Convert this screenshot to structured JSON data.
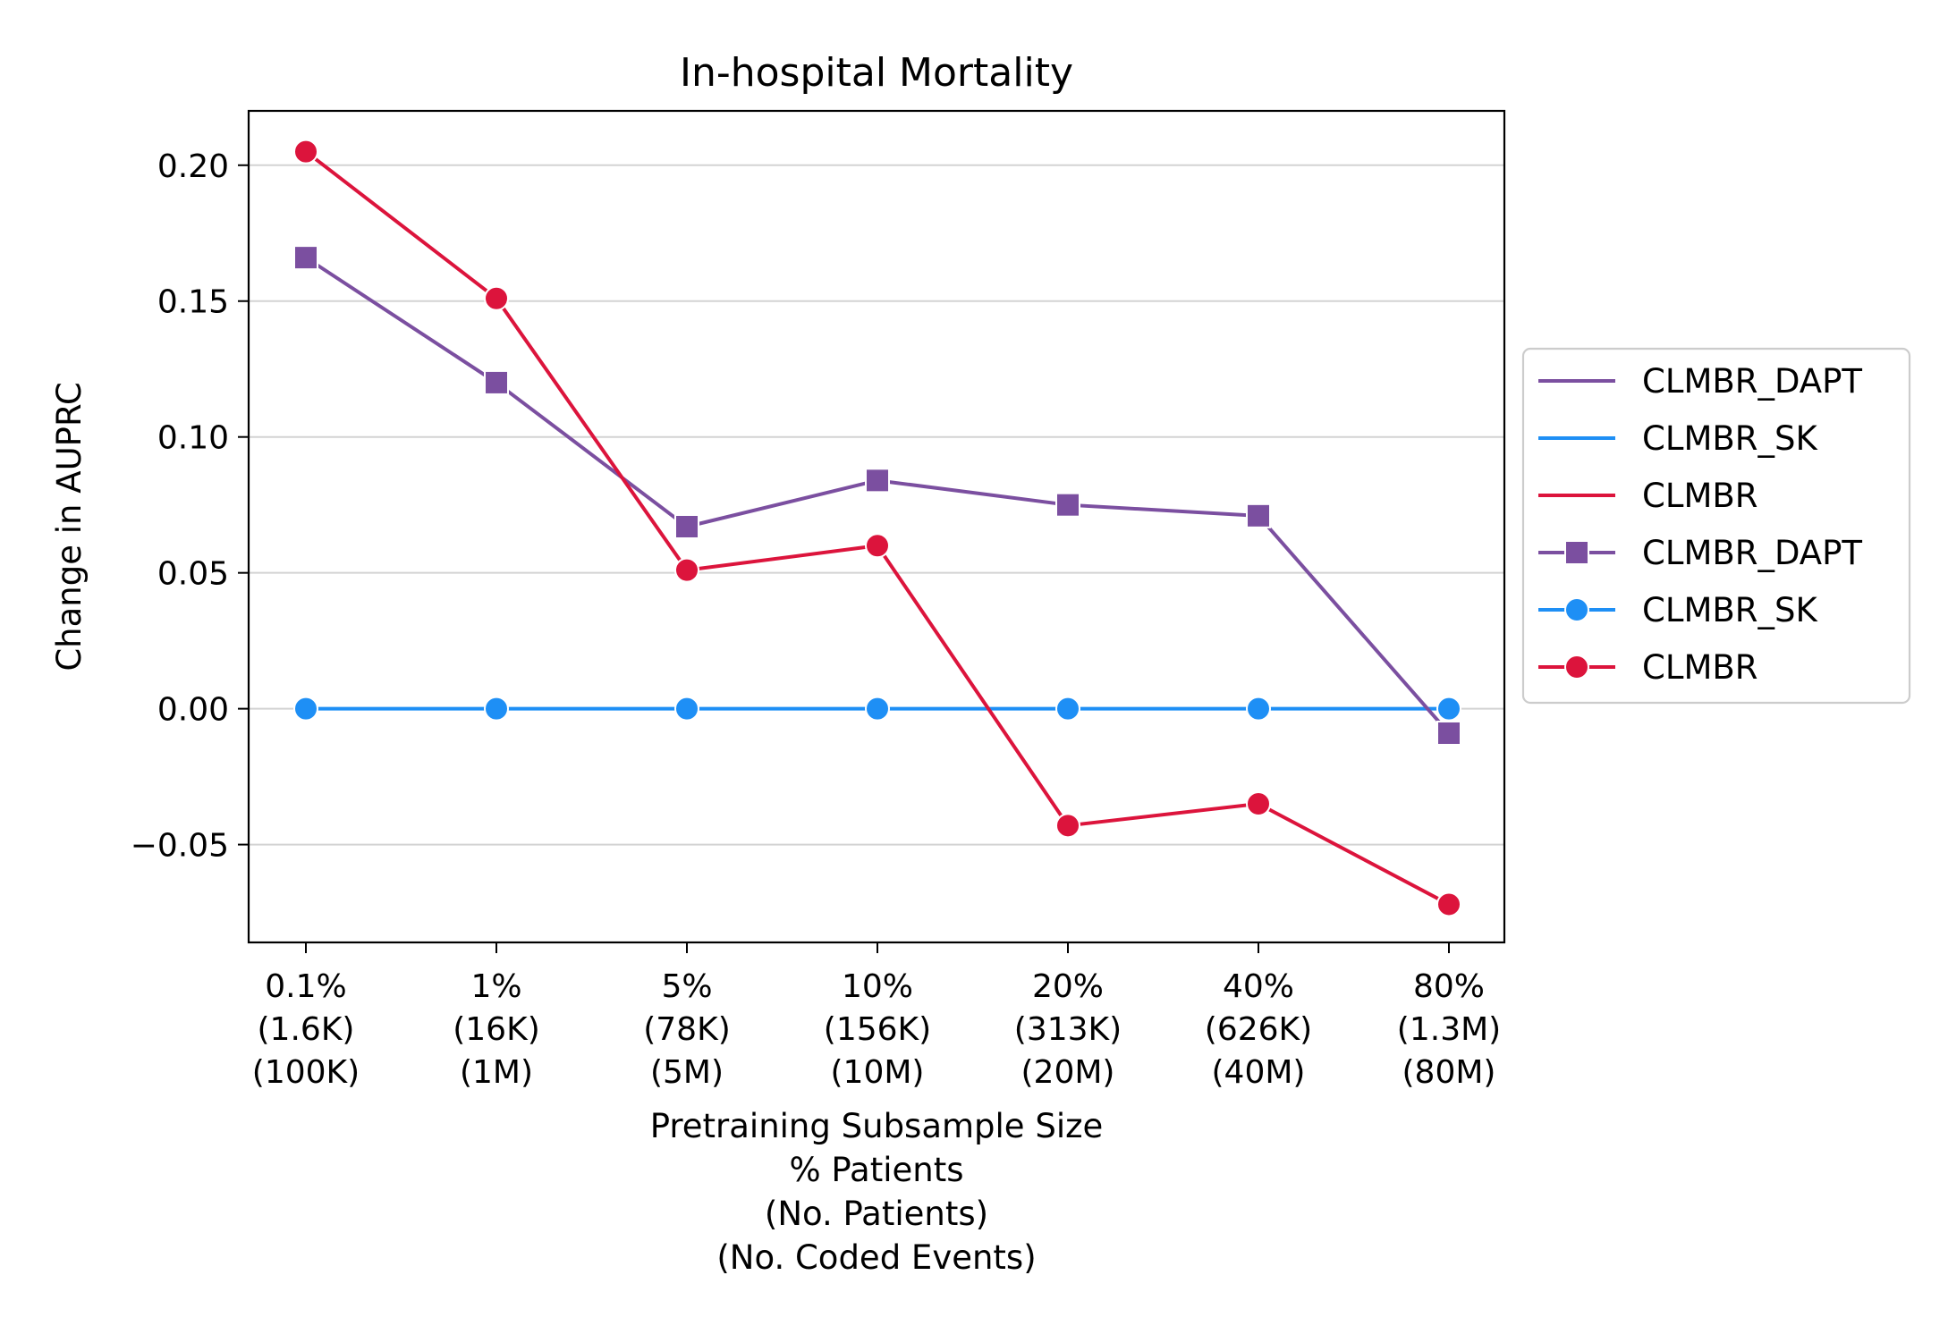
{
  "chart_data": {
    "type": "line",
    "title": "In-hospital Mortality",
    "ylabel": "Change in AUPRC",
    "xlabel_lines": [
      "Pretraining Subsample Size",
      "% Patients",
      "(No. Patients)",
      "(No. Coded Events)"
    ],
    "categories": [
      [
        "0.1%",
        "(1.6K)",
        "(100K)"
      ],
      [
        "1%",
        "(16K)",
        "(1M)"
      ],
      [
        "5%",
        "(78K)",
        "(5M)"
      ],
      [
        "10%",
        "(156K)",
        "(10M)"
      ],
      [
        "20%",
        "(313K)",
        "(20M)"
      ],
      [
        "40%",
        "(626K)",
        "(40M)"
      ],
      [
        "80%",
        "(1.3M)",
        "(80M)"
      ]
    ],
    "ylim": [
      -0.086,
      0.22
    ],
    "yticks": [
      -0.05,
      0.0,
      0.05,
      0.1,
      0.15,
      0.2
    ],
    "ytick_labels": [
      "−0.05",
      "0.00",
      "0.05",
      "0.10",
      "0.15",
      "0.20"
    ],
    "grid": "horizontal",
    "legend_position": "right-outside",
    "series": [
      {
        "name": "CLMBR_DAPT",
        "color": "#7b4fa0",
        "marker": "square",
        "values": [
          0.166,
          0.12,
          0.067,
          0.084,
          0.075,
          0.071,
          -0.009
        ]
      },
      {
        "name": "CLMBR_SK",
        "color": "#1e8ff5",
        "marker": "circle",
        "values": [
          0.0,
          0.0,
          0.0,
          0.0,
          0.0,
          0.0,
          0.0
        ]
      },
      {
        "name": "CLMBR",
        "color": "#dc143c",
        "marker": "circle",
        "values": [
          0.205,
          0.151,
          0.051,
          0.06,
          -0.043,
          -0.035,
          -0.072
        ]
      }
    ],
    "legend_entries": [
      {
        "label": "CLMBR_DAPT",
        "series": 0,
        "style": "line"
      },
      {
        "label": "CLMBR_SK",
        "series": 1,
        "style": "line"
      },
      {
        "label": "CLMBR",
        "series": 2,
        "style": "line"
      },
      {
        "label": "CLMBR_DAPT",
        "series": 0,
        "style": "marker"
      },
      {
        "label": "CLMBR_SK",
        "series": 1,
        "style": "marker"
      },
      {
        "label": "CLMBR",
        "series": 2,
        "style": "marker"
      }
    ]
  }
}
